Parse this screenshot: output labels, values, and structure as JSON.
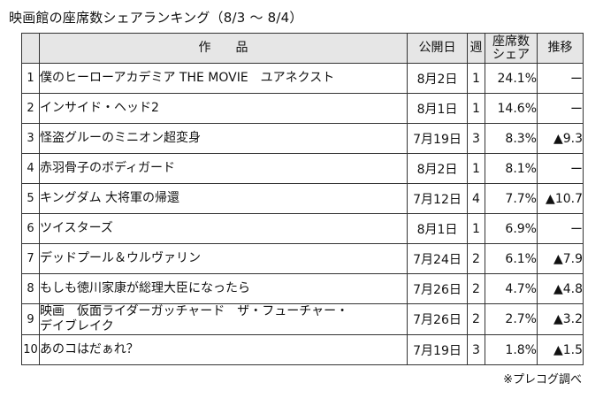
{
  "title": "映画館の座席数シェアランキング（8/3 ～ 8/4）",
  "headers": {
    "rank": "",
    "title": "作　　品",
    "release": "公開日",
    "week": "週",
    "share_line1": "座席数",
    "share_line2": "シェア",
    "trend": "推移"
  },
  "rows": [
    {
      "rank": "1",
      "title": "僕のヒーローアカデミア THE MOVIE　ユアネクスト",
      "title2": "",
      "release": "8月2日",
      "week": "1",
      "share": "24.1%",
      "trend": "ー"
    },
    {
      "rank": "2",
      "title": "インサイド・ヘッド2",
      "title2": "",
      "release": "8月1日",
      "week": "1",
      "share": "14.6%",
      "trend": "ー"
    },
    {
      "rank": "3",
      "title": "怪盗グルーのミニオン超変身",
      "title2": "",
      "release": "7月19日",
      "week": "3",
      "share": "8.3%",
      "trend": "▲9.3"
    },
    {
      "rank": "4",
      "title": "赤羽骨子のボディガード",
      "title2": "",
      "release": "8月2日",
      "week": "1",
      "share": "8.1%",
      "trend": "ー"
    },
    {
      "rank": "5",
      "title": "キングダム 大将軍の帰還",
      "title2": "",
      "release": "7月12日",
      "week": "4",
      "share": "7.7%",
      "trend": "▲10.7"
    },
    {
      "rank": "6",
      "title": "ツイスターズ",
      "title2": "",
      "release": "8月1日",
      "week": "1",
      "share": "6.9%",
      "trend": "ー"
    },
    {
      "rank": "7",
      "title": "デッドプール＆ウルヴァリン",
      "title2": "",
      "release": "7月24日",
      "week": "2",
      "share": "6.1%",
      "trend": "▲7.9"
    },
    {
      "rank": "8",
      "title": "もしも徳川家康が総理大臣になったら",
      "title2": "",
      "release": "7月26日",
      "week": "2",
      "share": "4.7%",
      "trend": "▲4.8"
    },
    {
      "rank": "9",
      "title": "映画　仮面ライダーガッチャード　ザ・フューチャー・",
      "title2": "デイブレイク",
      "release": "7月26日",
      "week": "2",
      "share": "2.7%",
      "trend": "▲3.2"
    },
    {
      "rank": "10",
      "title": "あのコはだぁれ？",
      "title2": "",
      "release": "7月19日",
      "week": "3",
      "share": "1.8%",
      "trend": "▲1.5"
    }
  ],
  "source": "※プレコグ調べ"
}
